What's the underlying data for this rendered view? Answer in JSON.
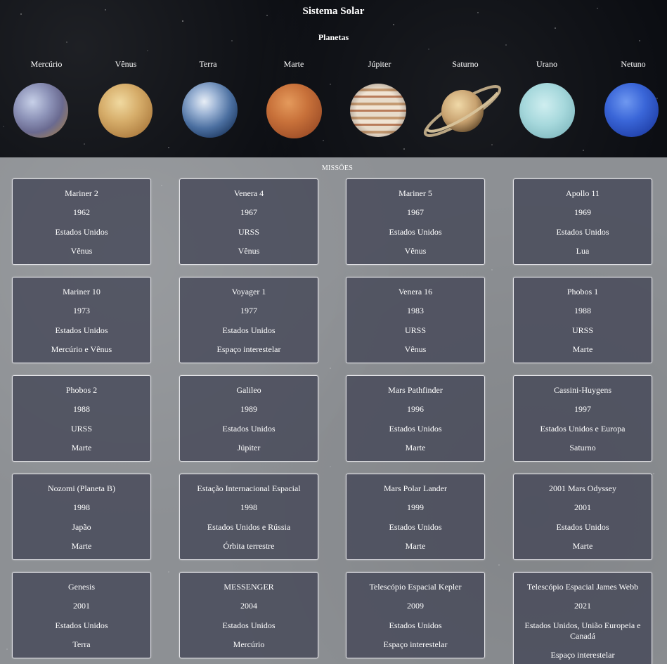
{
  "site_title": "Sistema Solar",
  "planets_heading": "Planetas",
  "planets": [
    {
      "name": "Mercúrio"
    },
    {
      "name": "Vênus"
    },
    {
      "name": "Terra"
    },
    {
      "name": "Marte"
    },
    {
      "name": "Júpiter"
    },
    {
      "name": "Saturno"
    },
    {
      "name": "Urano"
    },
    {
      "name": "Netuno"
    }
  ],
  "missions_heading": "MISSÕES",
  "missions": [
    {
      "name": "Mariner 2",
      "year": "1962",
      "country": "Estados Unidos",
      "target": "Vênus"
    },
    {
      "name": "Venera 4",
      "year": "1967",
      "country": "URSS",
      "target": "Vênus"
    },
    {
      "name": "Mariner 5",
      "year": "1967",
      "country": "Estados Unidos",
      "target": "Vênus"
    },
    {
      "name": "Apollo 11",
      "year": "1969",
      "country": "Estados Unidos",
      "target": "Lua"
    },
    {
      "name": "Mariner 10",
      "year": "1973",
      "country": "Estados Unidos",
      "target": "Mercúrio e Vênus"
    },
    {
      "name": "Voyager 1",
      "year": "1977",
      "country": "Estados Unidos",
      "target": "Espaço interestelar"
    },
    {
      "name": "Venera 16",
      "year": "1983",
      "country": "URSS",
      "target": "Vênus"
    },
    {
      "name": "Phobos 1",
      "year": "1988",
      "country": "URSS",
      "target": "Marte"
    },
    {
      "name": "Phobos 2",
      "year": "1988",
      "country": "URSS",
      "target": "Marte"
    },
    {
      "name": "Galileo",
      "year": "1989",
      "country": "Estados Unidos",
      "target": "Júpiter"
    },
    {
      "name": "Mars Pathfinder",
      "year": "1996",
      "country": "Estados Unidos",
      "target": "Marte"
    },
    {
      "name": "Cassini-Huygens",
      "year": "1997",
      "country": "Estados Unidos e Europa",
      "target": "Saturno"
    },
    {
      "name": "Nozomi (Planeta B)",
      "year": "1998",
      "country": "Japão",
      "target": "Marte"
    },
    {
      "name": "Estação Internacional Espacial",
      "year": "1998",
      "country": "Estados Unidos e Rússia",
      "target": "Órbita terrestre"
    },
    {
      "name": "Mars Polar Lander",
      "year": "1999",
      "country": "Estados Unidos",
      "target": "Marte"
    },
    {
      "name": "2001 Mars Odyssey",
      "year": "2001",
      "country": "Estados Unidos",
      "target": "Marte"
    },
    {
      "name": "Genesis",
      "year": "2001",
      "country": "Estados Unidos",
      "target": "Terra"
    },
    {
      "name": "MESSENGER",
      "year": "2004",
      "country": "Estados Unidos",
      "target": "Mercúrio"
    },
    {
      "name": "Telescópio Espacial Kepler",
      "year": "2009",
      "country": "Estados Unidos",
      "target": "Espaço interestelar"
    },
    {
      "name": "Telescópio Espacial James Webb",
      "year": "2021",
      "country": "Estados Unidos, União Europeia e Canadá",
      "target": "Espaço interestelar"
    }
  ]
}
